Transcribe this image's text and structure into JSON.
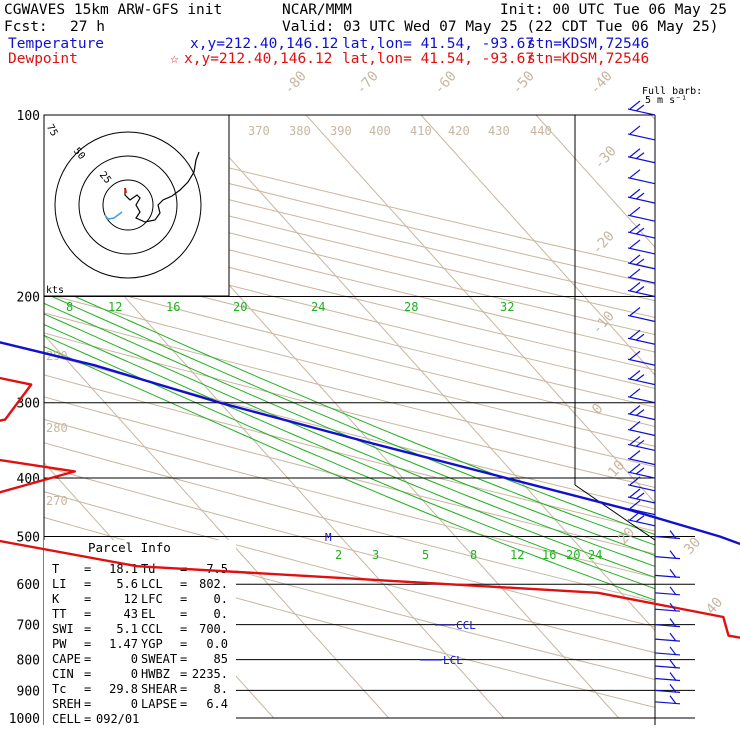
{
  "header": {
    "model": "CGWAVES 15km ARW-GFS init",
    "org": "NCAR/MMM",
    "init": "Init: 00 UTC Tue 06 May 25",
    "fcst_label": "Fcst:",
    "fcst_value": "27 h",
    "valid": "Valid: 03 UTC Wed 07 May 25 (22 CDT Tue 06 May 25)",
    "temp_label": "Temperature",
    "temp_xy": "x,y=212.40,146.12",
    "temp_latlon": "lat,lon= 41.54, -93.67",
    "temp_stn": "stn=KDSM,72546",
    "dew_label": "Dewpoint",
    "dew_star": "☆",
    "dew_xy": "x,y=212.40,146.12",
    "dew_latlon": "lat,lon= 41.54, -93.67",
    "dew_stn": "stn=KDSM,72546"
  },
  "barb_key": {
    "line1": "Full barb:",
    "line2": "5 m s⁻¹"
  },
  "hodograph": {
    "rings": [
      "75",
      "50",
      "25"
    ],
    "units": "kts"
  },
  "parcel_info": {
    "title": "Parcel Info",
    "rows": [
      [
        "T",
        "18.1",
        "Td",
        "7.5"
      ],
      [
        "LI",
        "5.6",
        "LCL",
        "802."
      ],
      [
        "K",
        "12",
        "LFC",
        "0."
      ],
      [
        "TT",
        "43",
        "EL",
        "0."
      ],
      [
        "SWI",
        "5.1",
        "CCL",
        "700."
      ],
      [
        "PW",
        "1.47",
        "YGP",
        "0.0"
      ],
      [
        "CAPE",
        "0",
        "SWEAT",
        "85"
      ],
      [
        "CIN",
        "0",
        "HWBZ",
        "2235."
      ],
      [
        "Tc",
        "29.8",
        "SHEAR",
        "8."
      ],
      [
        "SREH",
        "0",
        "LAPSE",
        "6.4"
      ],
      [
        "CELL",
        "092/01",
        "",
        ""
      ]
    ]
  },
  "levels": {
    "ccl": "CCL",
    "lcl": "LCL",
    "m": "M"
  },
  "colors": {
    "temperature": "#1010d0",
    "dewpoint": "#e01010",
    "isotherm": "#c8b6a0",
    "dry_adiabat": "#c8b6a0",
    "moist_adiabat": "#20b020",
    "mixing_ratio": "#20b020",
    "isobar": "#000000",
    "barb": "#1010d0"
  },
  "chart_data": {
    "type": "skew-t",
    "y_axis": "pressure (hPa)",
    "pressure_ticks": [
      "100",
      "200",
      "300",
      "400",
      "500",
      "600",
      "700",
      "800",
      "900",
      "1000"
    ],
    "isotherm_labels": [
      "-80",
      "-70",
      "-60",
      "-50",
      "-40",
      "-30",
      "-20",
      "-10",
      "0",
      "10",
      "20",
      "30",
      "40"
    ],
    "theta_labels": [
      "370",
      "380",
      "390",
      "400",
      "410",
      "420",
      "430",
      "440",
      "290",
      "280",
      "270"
    ],
    "theta_e_labels": [
      "8",
      "12",
      "16",
      "20",
      "24",
      "28",
      "32"
    ],
    "mixing_ratio_labels": [
      "2",
      "3",
      "5",
      "8",
      "12",
      "16",
      "20",
      "24"
    ],
    "temperature_profile": [
      {
        "p": 100,
        "t": -61
      },
      {
        "p": 110,
        "t": -62
      },
      {
        "p": 125,
        "t": -60
      },
      {
        "p": 140,
        "t": -55
      },
      {
        "p": 155,
        "t": -59
      },
      {
        "p": 163,
        "t": -68
      },
      {
        "p": 173,
        "t": -66
      },
      {
        "p": 188,
        "t": -66
      },
      {
        "p": 200,
        "t": -65
      },
      {
        "p": 230,
        "t": -57
      },
      {
        "p": 260,
        "t": -48
      },
      {
        "p": 300,
        "t": -40
      },
      {
        "p": 350,
        "t": -30
      },
      {
        "p": 400,
        "t": -21
      },
      {
        "p": 450,
        "t": -13
      },
      {
        "p": 500,
        "t": -7
      },
      {
        "p": 550,
        "t": -3
      },
      {
        "p": 600,
        "t": 1
      },
      {
        "p": 650,
        "t": 4
      },
      {
        "p": 700,
        "t": 8
      },
      {
        "p": 750,
        "t": 10
      },
      {
        "p": 800,
        "t": 11
      },
      {
        "p": 850,
        "t": 13
      },
      {
        "p": 900,
        "t": 17
      },
      {
        "p": 960,
        "t": 18
      }
    ],
    "dewpoint_profile": [
      {
        "p": 100,
        "t": -77
      },
      {
        "p": 120,
        "t": -85
      },
      {
        "p": 140,
        "t": -95
      },
      {
        "p": 150,
        "t": -88
      },
      {
        "p": 165,
        "t": -82
      },
      {
        "p": 178,
        "t": -80
      },
      {
        "p": 200,
        "t": -80
      },
      {
        "p": 250,
        "t": -65
      },
      {
        "p": 280,
        "t": -55
      },
      {
        "p": 320,
        "t": -60
      },
      {
        "p": 350,
        "t": -72
      },
      {
        "p": 390,
        "t": -58
      },
      {
        "p": 430,
        "t": -68
      },
      {
        "p": 480,
        "t": -76
      },
      {
        "p": 560,
        "t": -60
      },
      {
        "p": 620,
        "t": -22
      },
      {
        "p": 680,
        "t": -13
      },
      {
        "p": 730,
        "t": -14
      },
      {
        "p": 780,
        "t": -7
      },
      {
        "p": 820,
        "t": 7
      },
      {
        "p": 850,
        "t": 9
      },
      {
        "p": 900,
        "t": 7
      },
      {
        "p": 960,
        "t": 6
      }
    ],
    "wind_barbs_pressure": [
      100,
      110,
      120,
      130,
      140,
      150,
      160,
      170,
      180,
      190,
      200,
      220,
      240,
      260,
      280,
      300,
      320,
      340,
      360,
      380,
      400,
      420,
      440,
      460,
      480,
      500,
      540,
      580,
      620,
      660,
      700,
      740,
      780,
      820,
      860,
      900,
      940
    ]
  }
}
